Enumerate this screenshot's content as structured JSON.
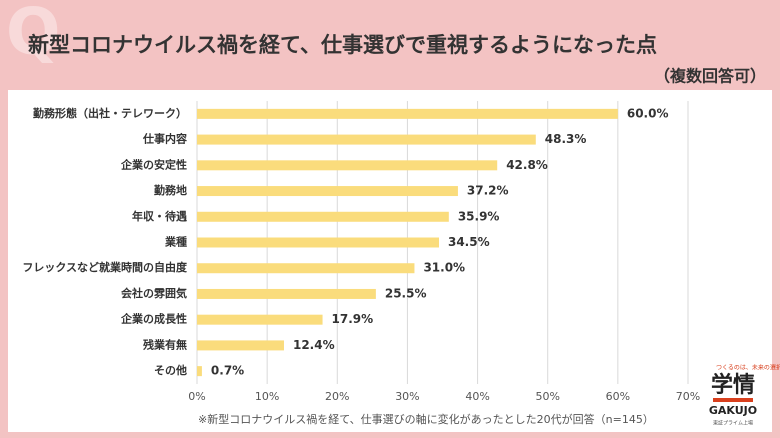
{
  "watermark": "Q",
  "chart_data": {
    "type": "hbar",
    "title": "新型コロナウイルス禍を経て、仕事選びで重視するようになった点",
    "subtitle": "（複数回答可）",
    "categories": [
      "勤務形態（出社・テレワーク）",
      "仕事内容",
      "企業の安定性",
      "勤務地",
      "年収・待遇",
      "業種",
      "フレックスなど就業時間の自由度",
      "会社の雰囲気",
      "企業の成長性",
      "残業有無",
      "その他"
    ],
    "values": [
      60.0,
      48.3,
      42.8,
      37.2,
      35.9,
      34.5,
      31.0,
      25.5,
      17.9,
      12.4,
      0.7
    ],
    "value_labels": [
      "60.0%",
      "48.3%",
      "42.8%",
      "37.2%",
      "35.9%",
      "34.5%",
      "31.0%",
      "25.5%",
      "17.9%",
      "12.4%",
      "0.7%"
    ],
    "color": "#fadc7c",
    "xlim": [
      0,
      70
    ],
    "xticks": [
      {
        "value": 0,
        "label": "0%"
      },
      {
        "value": 10,
        "label": "10%"
      },
      {
        "value": 20,
        "label": "20%"
      },
      {
        "value": 30,
        "label": "30%"
      },
      {
        "value": 40,
        "label": "40%"
      },
      {
        "value": 50,
        "label": "50%"
      },
      {
        "value": 60,
        "label": "60%"
      },
      {
        "value": 70,
        "label": "70%"
      }
    ],
    "grid": true,
    "note": "※新型コロナウイルス禍を経て、仕事選びの軸に変化があったとした20代が回答（n=145）"
  },
  "logo": {
    "tagline": "つくるのは、未来の選択肢",
    "name": "学情",
    "roman": "GAKUJO",
    "sub": "東証プライム上場"
  }
}
